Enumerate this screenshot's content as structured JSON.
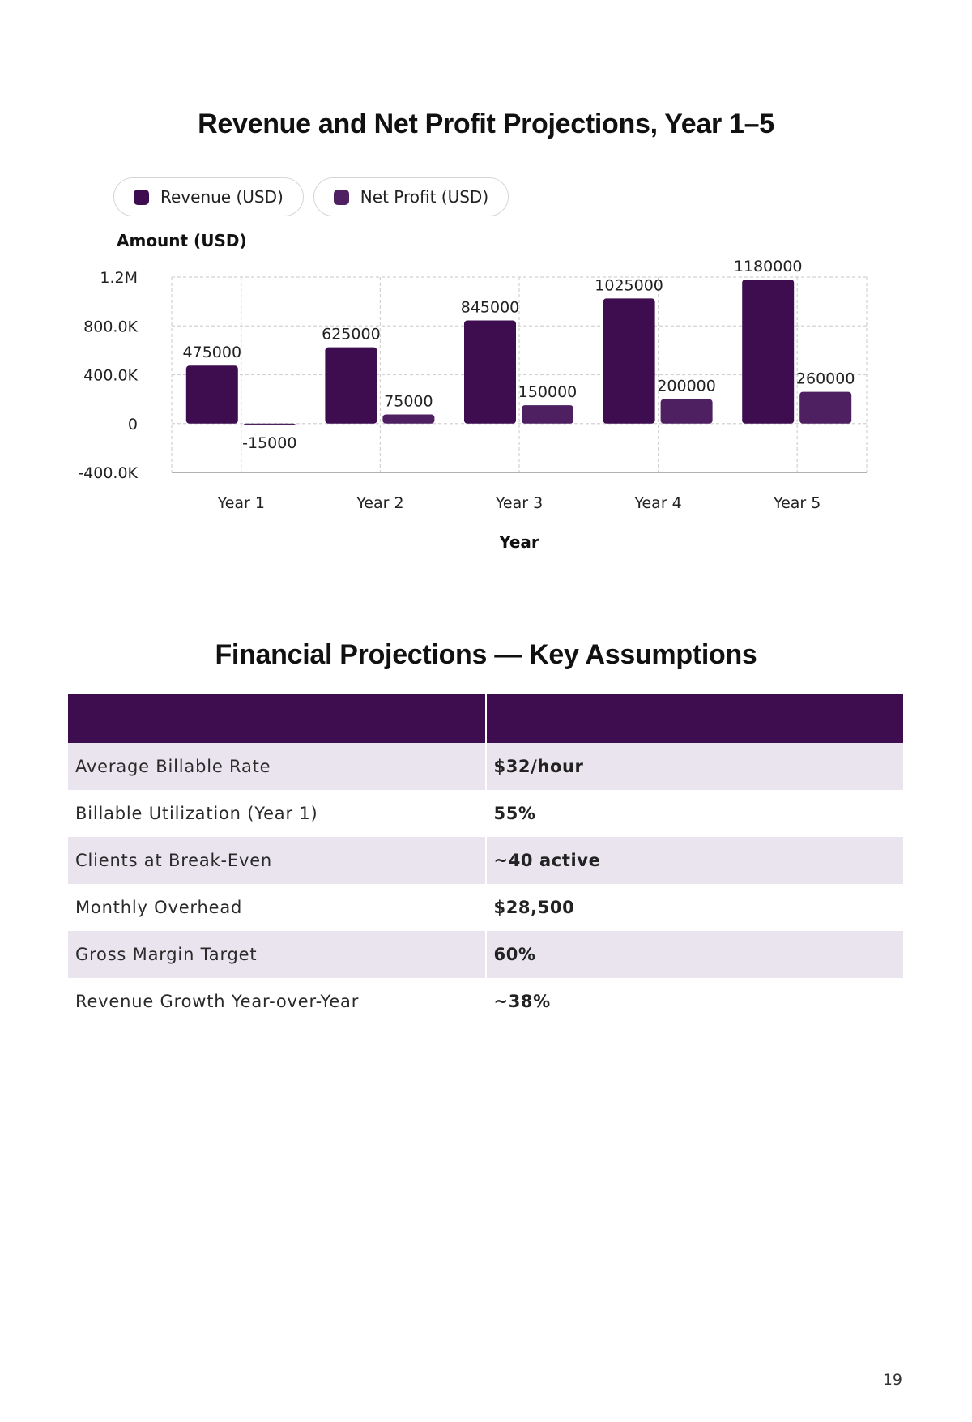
{
  "chart_data": {
    "type": "bar",
    "title": "Revenue and Net Profit Projections, Year 1–5",
    "xlabel": "Year",
    "ylabel": "Amount (USD)",
    "categories": [
      "Year 1",
      "Year 2",
      "Year 3",
      "Year 4",
      "Year 5"
    ],
    "series": [
      {
        "name": "Revenue (USD)",
        "values": [
          475000,
          625000,
          845000,
          1025000,
          1180000
        ],
        "color": "#3e0d4f"
      },
      {
        "name": "Net Profit (USD)",
        "values": [
          -15000,
          75000,
          150000,
          200000,
          260000
        ],
        "color": "#4e2062"
      }
    ],
    "ylim": [
      -400000,
      1200000
    ],
    "yticks": [
      -400000,
      0,
      400000,
      800000,
      1200000
    ],
    "ytick_labels": [
      "-400.0K",
      "0",
      "400.0K",
      "800.0K",
      "1.2M"
    ],
    "grid": true,
    "legend": "top-left",
    "data_labels": true
  },
  "table": {
    "title": "Financial Projections — Key Assumptions",
    "headers": [
      "",
      ""
    ],
    "rows": [
      {
        "label": "Average Billable Rate",
        "value": "$32/hour"
      },
      {
        "label": "Billable Utilization (Year 1)",
        "value": "55%"
      },
      {
        "label": "Clients at Break-Even",
        "value": "~40 active"
      },
      {
        "label": "Monthly Overhead",
        "value": "$28,500"
      },
      {
        "label": "Gross Margin Target",
        "value": "60%"
      },
      {
        "label": "Revenue Growth Year-over-Year",
        "value": "~38%"
      }
    ]
  },
  "page_number": "19"
}
